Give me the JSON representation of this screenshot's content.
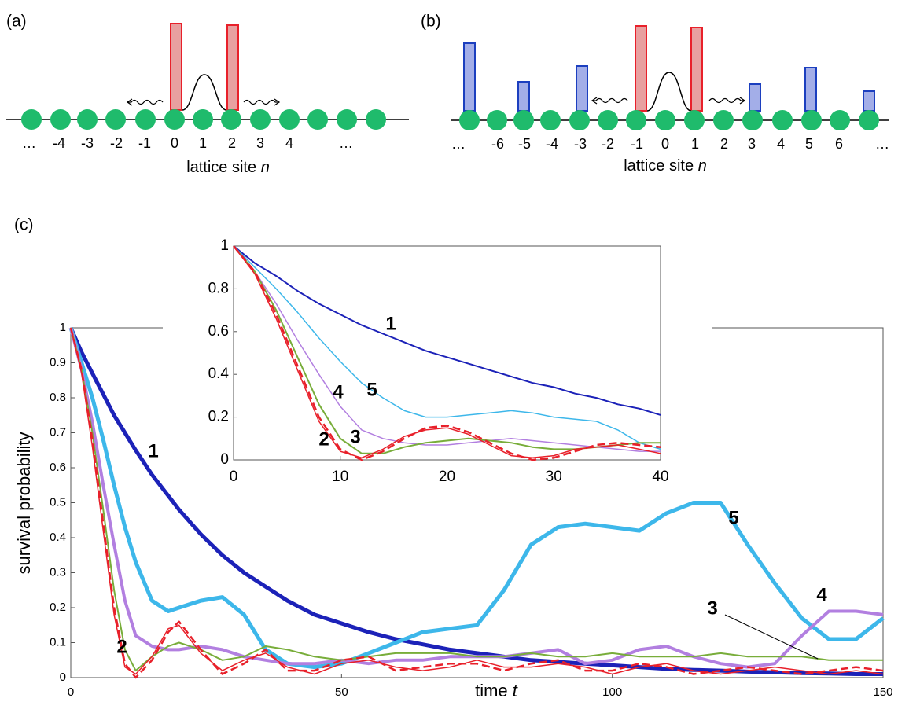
{
  "panel_a": {
    "label": "(a)",
    "sites": [
      "…",
      "-4",
      "-3",
      "-2",
      "-1",
      "0",
      "1",
      "2",
      "3",
      "4",
      "…"
    ],
    "axis_label": "lattice site",
    "axis_var": "n"
  },
  "panel_b": {
    "label": "(b)",
    "sites": [
      "…",
      "-6",
      "-5",
      "-4",
      "-3",
      "-2",
      "-1",
      "0",
      "1",
      "2",
      "3",
      "4",
      "5",
      "6",
      "…"
    ],
    "axis_label": "lattice site",
    "axis_var": "n"
  },
  "panel_c": {
    "label": "(c)"
  },
  "chart_data": [
    {
      "type": "line",
      "xlabel": "time",
      "xlabel_var": "t",
      "ylabel": "survival probability",
      "xlim": [
        0,
        150
      ],
      "ylim": [
        0,
        1
      ],
      "xticks": [
        0,
        50,
        100,
        150
      ],
      "yticks": [
        0,
        0.1,
        0.2,
        0.3,
        0.4,
        0.5,
        0.6,
        0.7,
        0.8,
        0.9,
        1
      ],
      "x": [
        0,
        2,
        4,
        6,
        8,
        10,
        12,
        15,
        18,
        20,
        24,
        28,
        32,
        36,
        40,
        45,
        50,
        55,
        60,
        65,
        70,
        75,
        80,
        85,
        90,
        95,
        100,
        105,
        110,
        115,
        120,
        125,
        130,
        135,
        140,
        145,
        150
      ],
      "series": [
        {
          "name": "1",
          "color": "#1c22b8",
          "values": [
            1,
            0.93,
            0.87,
            0.81,
            0.75,
            0.7,
            0.65,
            0.58,
            0.52,
            0.48,
            0.41,
            0.35,
            0.3,
            0.26,
            0.22,
            0.18,
            0.155,
            0.13,
            0.11,
            0.095,
            0.08,
            0.07,
            0.06,
            0.05,
            0.045,
            0.04,
            0.035,
            0.03,
            0.025,
            0.022,
            0.02,
            0.017,
            0.015,
            0.013,
            0.012,
            0.01,
            0.01
          ]
        },
        {
          "name": "5",
          "color": "#3db7ea",
          "values": [
            1,
            0.9,
            0.8,
            0.68,
            0.55,
            0.43,
            0.33,
            0.22,
            0.19,
            0.2,
            0.22,
            0.23,
            0.18,
            0.08,
            0.04,
            0.03,
            0.04,
            0.07,
            0.1,
            0.13,
            0.14,
            0.15,
            0.25,
            0.38,
            0.43,
            0.44,
            0.43,
            0.42,
            0.47,
            0.5,
            0.5,
            0.38,
            0.27,
            0.17,
            0.11,
            0.11,
            0.17
          ]
        },
        {
          "name": "4",
          "color": "#b27fe0",
          "values": [
            1,
            0.88,
            0.73,
            0.55,
            0.38,
            0.22,
            0.12,
            0.09,
            0.08,
            0.08,
            0.09,
            0.08,
            0.06,
            0.05,
            0.04,
            0.04,
            0.05,
            0.04,
            0.05,
            0.05,
            0.06,
            0.06,
            0.06,
            0.07,
            0.08,
            0.04,
            0.05,
            0.08,
            0.09,
            0.06,
            0.04,
            0.03,
            0.04,
            0.12,
            0.19,
            0.19,
            0.18
          ]
        },
        {
          "name": "3",
          "color": "#78ad3a",
          "values": [
            1,
            0.88,
            0.7,
            0.48,
            0.25,
            0.08,
            0.02,
            0.06,
            0.09,
            0.1,
            0.08,
            0.05,
            0.06,
            0.09,
            0.08,
            0.06,
            0.05,
            0.06,
            0.07,
            0.07,
            0.07,
            0.06,
            0.06,
            0.07,
            0.06,
            0.06,
            0.07,
            0.06,
            0.06,
            0.06,
            0.07,
            0.06,
            0.06,
            0.06,
            0.05,
            0.05,
            0.05
          ]
        },
        {
          "name": "2",
          "color": "#e8202a",
          "dashed": true,
          "values": [
            1,
            0.88,
            0.68,
            0.44,
            0.2,
            0.04,
            0,
            0.05,
            0.13,
            0.16,
            0.08,
            0.01,
            0.04,
            0.08,
            0.02,
            0.02,
            0.05,
            0.06,
            0.02,
            0.03,
            0.04,
            0.04,
            0.02,
            0.04,
            0.05,
            0.02,
            0.02,
            0.04,
            0.03,
            0.01,
            0.02,
            0.03,
            0.02,
            0.01,
            0.02,
            0.03,
            0.02
          ]
        },
        {
          "color": "#e8202a",
          "values": [
            1,
            0.87,
            0.66,
            0.42,
            0.18,
            0.03,
            0.01,
            0.06,
            0.14,
            0.15,
            0.07,
            0.02,
            0.05,
            0.07,
            0.03,
            0.01,
            0.04,
            0.05,
            0.03,
            0.02,
            0.03,
            0.05,
            0.03,
            0.03,
            0.04,
            0.03,
            0.01,
            0.03,
            0.04,
            0.02,
            0.01,
            0.02,
            0.03,
            0.02,
            0.01,
            0.02,
            0.01
          ]
        }
      ]
    },
    {
      "type": "line",
      "xlim": [
        0,
        40
      ],
      "ylim": [
        0,
        1
      ],
      "xticks": [
        0,
        10,
        20,
        30,
        40
      ],
      "yticks": [
        0,
        0.2,
        0.4,
        0.6,
        0.8,
        1
      ],
      "x": [
        0,
        2,
        4,
        6,
        8,
        10,
        12,
        14,
        16,
        18,
        20,
        22,
        24,
        26,
        28,
        30,
        32,
        34,
        36,
        38,
        40
      ],
      "series": [
        {
          "name": "1",
          "color": "#1c22b8",
          "values": [
            1,
            0.92,
            0.86,
            0.79,
            0.73,
            0.68,
            0.63,
            0.59,
            0.55,
            0.51,
            0.48,
            0.45,
            0.42,
            0.39,
            0.36,
            0.34,
            0.31,
            0.29,
            0.26,
            0.24,
            0.21
          ]
        },
        {
          "name": "5",
          "color": "#3db7ea",
          "values": [
            1,
            0.9,
            0.8,
            0.69,
            0.57,
            0.46,
            0.36,
            0.29,
            0.23,
            0.2,
            0.2,
            0.21,
            0.22,
            0.23,
            0.22,
            0.2,
            0.19,
            0.18,
            0.14,
            0.08,
            0.05
          ]
        },
        {
          "name": "4",
          "color": "#b27fe0",
          "values": [
            1,
            0.88,
            0.73,
            0.56,
            0.4,
            0.25,
            0.14,
            0.1,
            0.08,
            0.07,
            0.07,
            0.08,
            0.09,
            0.1,
            0.09,
            0.08,
            0.07,
            0.06,
            0.05,
            0.04,
            0.04
          ]
        },
        {
          "name": "3",
          "color": "#78ad3a",
          "values": [
            1,
            0.88,
            0.7,
            0.48,
            0.26,
            0.1,
            0.03,
            0.03,
            0.06,
            0.08,
            0.09,
            0.1,
            0.09,
            0.08,
            0.06,
            0.05,
            0.05,
            0.06,
            0.07,
            0.08,
            0.08
          ]
        },
        {
          "name": "2",
          "color": "#e8202a",
          "dashed": true,
          "values": [
            1,
            0.88,
            0.68,
            0.44,
            0.2,
            0.05,
            0,
            0.04,
            0.1,
            0.15,
            0.16,
            0.13,
            0.08,
            0.03,
            0,
            0.01,
            0.04,
            0.07,
            0.08,
            0.07,
            0.06
          ]
        },
        {
          "color": "#e8202a",
          "values": [
            1,
            0.87,
            0.66,
            0.42,
            0.18,
            0.04,
            0.01,
            0.05,
            0.11,
            0.14,
            0.15,
            0.12,
            0.07,
            0.02,
            0.01,
            0.02,
            0.05,
            0.06,
            0.07,
            0.05,
            0.03
          ]
        }
      ]
    }
  ]
}
